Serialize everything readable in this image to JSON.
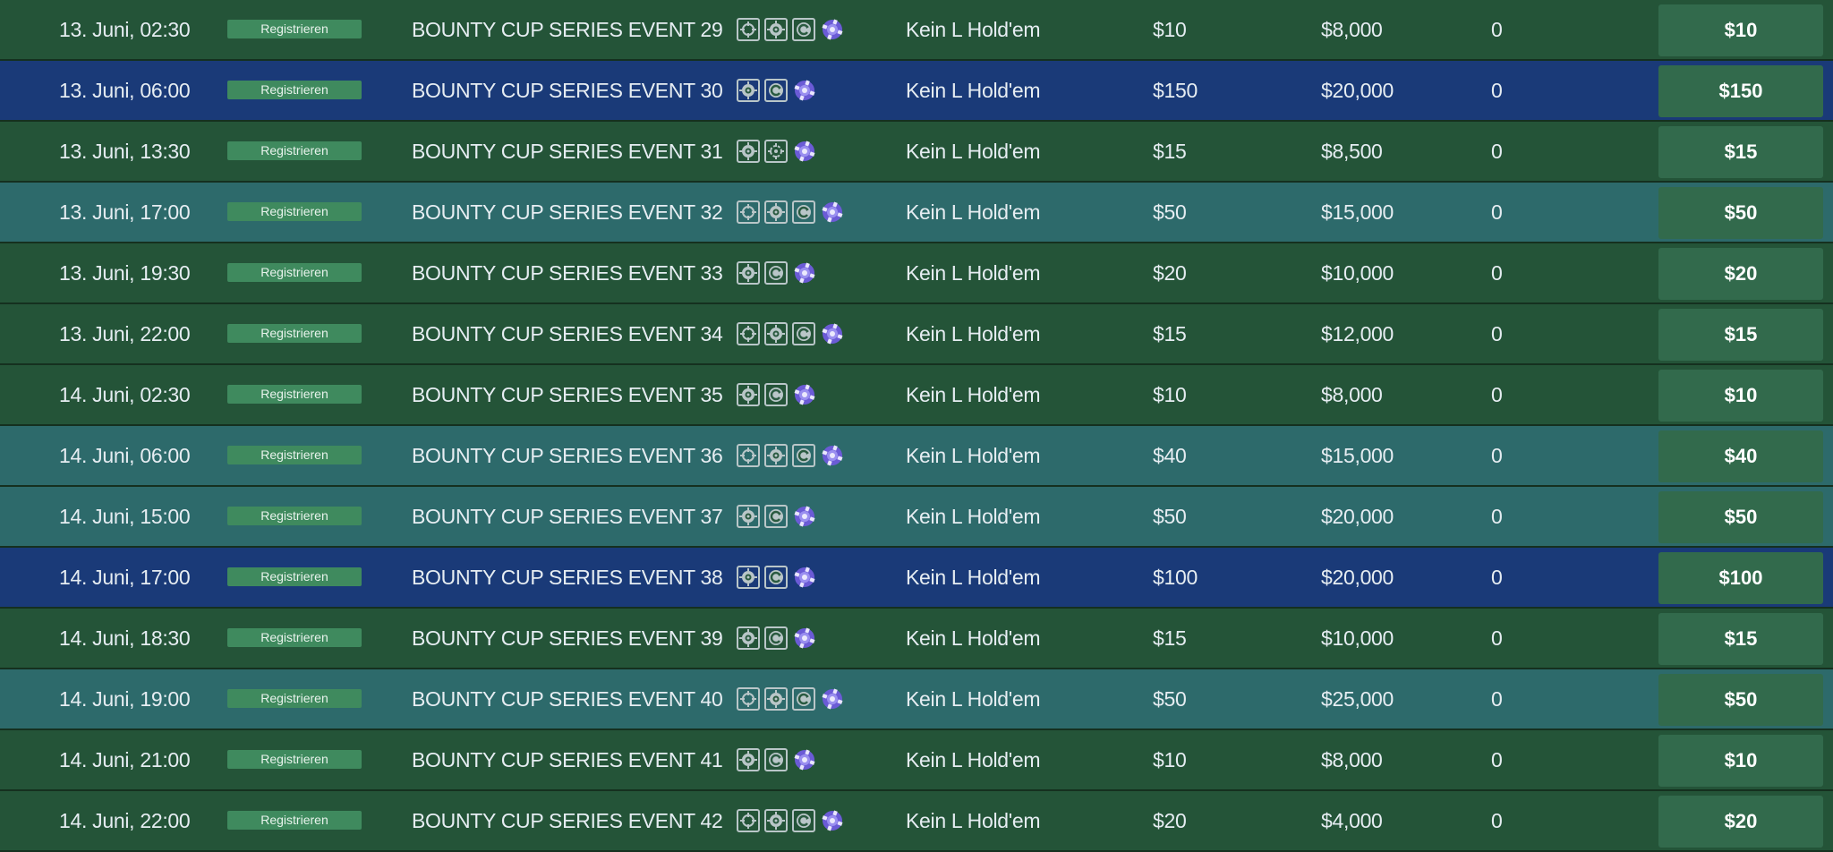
{
  "rows": [
    {
      "date": "13. Juni, 02:30",
      "register": "Registrieren",
      "name": "BOUNTY CUP SERIES EVENT 29",
      "icons": [
        "crosshair-icon",
        "target-icon",
        "rebuy-icon",
        "chip-icon"
      ],
      "game": "Kein L Hold'em",
      "buyin": "$10",
      "prize": "$8,000",
      "players": "0",
      "button": "$10",
      "color": "green"
    },
    {
      "date": "13. Juni, 06:00",
      "register": "Registrieren",
      "name": "BOUNTY CUP SERIES EVENT 30",
      "icons": [
        "target-icon",
        "rebuy-icon",
        "chip-icon"
      ],
      "game": "Kein L Hold'em",
      "buyin": "$150",
      "prize": "$20,000",
      "players": "0",
      "button": "$150",
      "color": "blue"
    },
    {
      "date": "13. Juni, 13:30",
      "register": "Registrieren",
      "name": "BOUNTY CUP SERIES EVENT 31",
      "icons": [
        "target-icon",
        "scatter-icon",
        "chip-icon"
      ],
      "game": "Kein L Hold'em",
      "buyin": "$15",
      "prize": "$8,500",
      "players": "0",
      "button": "$15",
      "color": "green"
    },
    {
      "date": "13. Juni, 17:00",
      "register": "Registrieren",
      "name": "BOUNTY CUP SERIES EVENT 32",
      "icons": [
        "crosshair-icon",
        "target-icon",
        "rebuy-icon",
        "chip-icon"
      ],
      "game": "Kein L Hold'em",
      "buyin": "$50",
      "prize": "$15,000",
      "players": "0",
      "button": "$50",
      "color": "teal"
    },
    {
      "date": "13. Juni, 19:30",
      "register": "Registrieren",
      "name": "BOUNTY CUP SERIES EVENT 33",
      "icons": [
        "target-icon",
        "rebuy-icon",
        "chip-icon"
      ],
      "game": "Kein L Hold'em",
      "buyin": "$20",
      "prize": "$10,000",
      "players": "0",
      "button": "$20",
      "color": "green"
    },
    {
      "date": "13. Juni, 22:00",
      "register": "Registrieren",
      "name": "BOUNTY CUP SERIES EVENT 34",
      "icons": [
        "crosshair-icon",
        "target-icon",
        "rebuy-icon",
        "chip-icon"
      ],
      "game": "Kein L Hold'em",
      "buyin": "$15",
      "prize": "$12,000",
      "players": "0",
      "button": "$15",
      "color": "green"
    },
    {
      "date": "14. Juni, 02:30",
      "register": "Registrieren",
      "name": "BOUNTY CUP SERIES EVENT 35",
      "icons": [
        "target-icon",
        "rebuy-icon",
        "chip-icon"
      ],
      "game": "Kein L Hold'em",
      "buyin": "$10",
      "prize": "$8,000",
      "players": "0",
      "button": "$10",
      "color": "green"
    },
    {
      "date": "14. Juni, 06:00",
      "register": "Registrieren",
      "name": "BOUNTY CUP SERIES EVENT 36",
      "icons": [
        "crosshair-icon",
        "target-icon",
        "rebuy-icon",
        "chip-icon"
      ],
      "game": "Kein L Hold'em",
      "buyin": "$40",
      "prize": "$15,000",
      "players": "0",
      "button": "$40",
      "color": "teal"
    },
    {
      "date": "14. Juni, 15:00",
      "register": "Registrieren",
      "name": "BOUNTY CUP SERIES EVENT 37",
      "icons": [
        "target-icon",
        "rebuy-icon",
        "chip-icon"
      ],
      "game": "Kein L Hold'em",
      "buyin": "$50",
      "prize": "$20,000",
      "players": "0",
      "button": "$50",
      "color": "teal"
    },
    {
      "date": "14. Juni, 17:00",
      "register": "Registrieren",
      "name": "BOUNTY CUP SERIES EVENT 38",
      "icons": [
        "target-icon",
        "rebuy-icon",
        "chip-icon"
      ],
      "game": "Kein L Hold'em",
      "buyin": "$100",
      "prize": "$20,000",
      "players": "0",
      "button": "$100",
      "color": "blue"
    },
    {
      "date": "14. Juni, 18:30",
      "register": "Registrieren",
      "name": "BOUNTY CUP SERIES EVENT 39",
      "icons": [
        "target-icon",
        "rebuy-icon",
        "chip-icon"
      ],
      "game": "Kein L Hold'em",
      "buyin": "$15",
      "prize": "$10,000",
      "players": "0",
      "button": "$15",
      "color": "green"
    },
    {
      "date": "14. Juni, 19:00",
      "register": "Registrieren",
      "name": "BOUNTY CUP SERIES EVENT 40",
      "icons": [
        "crosshair-icon",
        "target-icon",
        "rebuy-icon",
        "chip-icon"
      ],
      "game": "Kein L Hold'em",
      "buyin": "$50",
      "prize": "$25,000",
      "players": "0",
      "button": "$50",
      "color": "teal"
    },
    {
      "date": "14. Juni, 21:00",
      "register": "Registrieren",
      "name": "BOUNTY CUP SERIES EVENT 41",
      "icons": [
        "target-icon",
        "rebuy-icon",
        "chip-icon"
      ],
      "game": "Kein L Hold'em",
      "buyin": "$10",
      "prize": "$8,000",
      "players": "0",
      "button": "$10",
      "color": "green"
    },
    {
      "date": "14. Juni, 22:00",
      "register": "Registrieren",
      "name": "BOUNTY CUP SERIES EVENT 42",
      "icons": [
        "crosshair-icon",
        "target-icon",
        "rebuy-icon",
        "chip-icon"
      ],
      "game": "Kein L Hold'em",
      "buyin": "$20",
      "prize": "$4,000",
      "players": "0",
      "button": "$20",
      "color": "green"
    }
  ],
  "colors": {
    "green": "#245438",
    "teal": "#2d6a6b",
    "blue": "#1a3a78",
    "register_badge": "#3f8a5e",
    "buyin_button": "#326a4c",
    "chip": "#6b5bd6"
  }
}
